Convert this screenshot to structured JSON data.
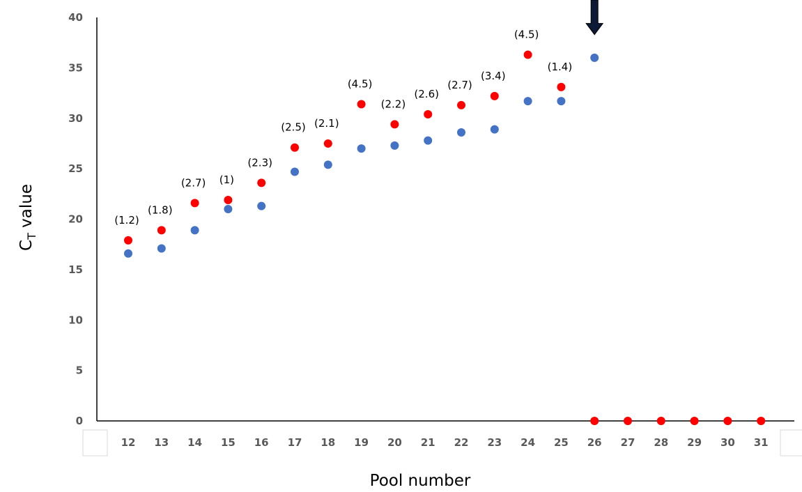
{
  "chart_data": {
    "type": "scatter",
    "xlabel": "Pool number",
    "ylabel_main": "C",
    "ylabel_sub": "T",
    "ylabel_rest": " value",
    "ylim": [
      0,
      40
    ],
    "y_ticks": [
      0,
      5,
      10,
      15,
      20,
      25,
      30,
      35,
      40
    ],
    "x_ticks": [
      "12",
      "13",
      "14",
      "15",
      "16",
      "17",
      "18",
      "19",
      "20",
      "21",
      "22",
      "23",
      "24",
      "25",
      "26",
      "27",
      "28",
      "29",
      "30",
      "31"
    ],
    "grid": false,
    "legend": "none",
    "series": [
      {
        "color": "#4472c4",
        "points": [
          {
            "x": "12",
            "y": 16.6
          },
          {
            "x": "13",
            "y": 17.1
          },
          {
            "x": "14",
            "y": 18.9
          },
          {
            "x": "15",
            "y": 21.0
          },
          {
            "x": "16",
            "y": 21.3
          },
          {
            "x": "17",
            "y": 24.7
          },
          {
            "x": "18",
            "y": 25.4
          },
          {
            "x": "19",
            "y": 27.0
          },
          {
            "x": "20",
            "y": 27.3
          },
          {
            "x": "21",
            "y": 27.8
          },
          {
            "x": "22",
            "y": 28.6
          },
          {
            "x": "23",
            "y": 28.9
          },
          {
            "x": "24",
            "y": 31.7
          },
          {
            "x": "25",
            "y": 31.7
          },
          {
            "x": "26",
            "y": 36.0
          }
        ]
      },
      {
        "color": "#ff0000",
        "points": [
          {
            "x": "12",
            "y": 17.9,
            "label": "(1.2)"
          },
          {
            "x": "13",
            "y": 18.9,
            "label": "(1.8)"
          },
          {
            "x": "14",
            "y": 21.6,
            "label": "(2.7)"
          },
          {
            "x": "15",
            "y": 21.9,
            "label": "(1)"
          },
          {
            "x": "16",
            "y": 23.6,
            "label": "(2.3)"
          },
          {
            "x": "17",
            "y": 27.1,
            "label": "(2.5)"
          },
          {
            "x": "18",
            "y": 27.5,
            "label": "(2.1)"
          },
          {
            "x": "19",
            "y": 31.4,
            "label": "(4.5)"
          },
          {
            "x": "20",
            "y": 29.4,
            "label": "(2.2)"
          },
          {
            "x": "21",
            "y": 30.4,
            "label": "(2.6)"
          },
          {
            "x": "22",
            "y": 31.3,
            "label": "(2.7)"
          },
          {
            "x": "23",
            "y": 32.2,
            "label": "(3.4)"
          },
          {
            "x": "24",
            "y": 36.3,
            "label": "(4.5)"
          },
          {
            "x": "25",
            "y": 33.1,
            "label": "(1.4)"
          },
          {
            "x": "26",
            "y": 0
          },
          {
            "x": "27",
            "y": 0
          },
          {
            "x": "28",
            "y": 0
          },
          {
            "x": "29",
            "y": 0
          },
          {
            "x": "30",
            "y": 0
          },
          {
            "x": "31",
            "y": 0
          }
        ]
      }
    ],
    "annotations": [
      {
        "type": "arrow-down",
        "x": "26",
        "color": "#0d1a36"
      }
    ]
  }
}
